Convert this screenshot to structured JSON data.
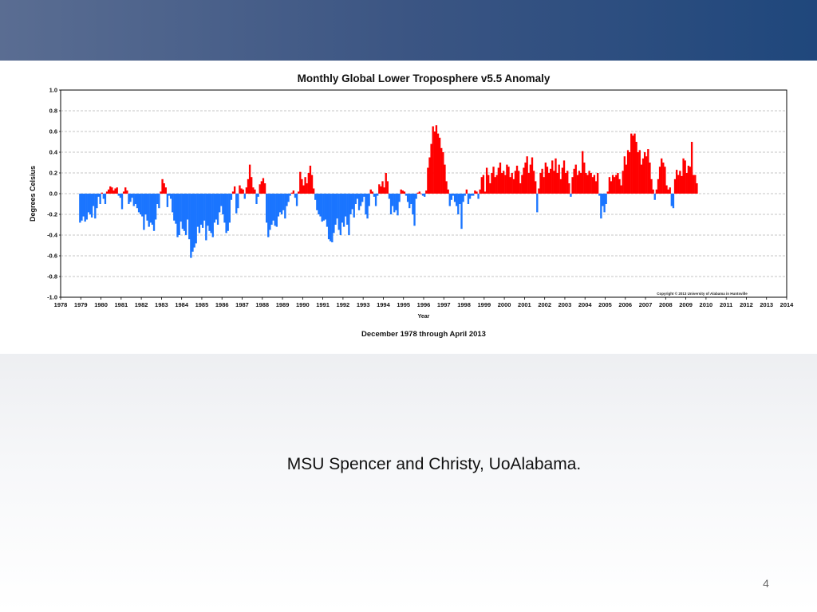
{
  "slide": {
    "caption": "MSU Spencer and Christy, UoAlabama.",
    "page_number": "4"
  },
  "colors": {
    "positive": "#ff0000",
    "negative": "#1a75ff",
    "band_left": "#5a6d92",
    "band_right": "#1f477c"
  },
  "chart_data": {
    "type": "bar",
    "title": "Monthly Global Lower Troposphere v5.5 Anomaly",
    "xlabel": "Year",
    "ylabel": "Degrees Celsius",
    "subtitle": "December 1978 through April 2013",
    "copyright": "Copyright © 2013 University of Alabama in Huntsville",
    "grid": true,
    "ylim": [
      -1.0,
      1.0
    ],
    "xlim": [
      1978,
      2014
    ],
    "yticks": [
      1.0,
      0.8,
      0.6,
      0.4,
      0.2,
      0.0,
      -0.2,
      -0.4,
      -0.6,
      -0.8,
      -1.0
    ],
    "yticklabels": [
      "1.0",
      "0.8",
      "0.6",
      "0.4",
      "0.2",
      "0.0",
      "-0.2",
      "-0.4",
      "-0.6",
      "-0.8",
      "-1.0"
    ],
    "xticks": [
      "1978",
      "1979",
      "1980",
      "1981",
      "1982",
      "1983",
      "1984",
      "1985",
      "1986",
      "1987",
      "1988",
      "1989",
      "1990",
      "1991",
      "1992",
      "1993",
      "1994",
      "1995",
      "1996",
      "1997",
      "1998",
      "1999",
      "2000",
      "2001",
      "2002",
      "2003",
      "2004",
      "2005",
      "2006",
      "2007",
      "2008",
      "2009",
      "2010",
      "2011",
      "2012",
      "2013",
      "2014"
    ],
    "start": "1978-12",
    "end": "2013-04",
    "values": [
      -0.28,
      -0.26,
      -0.22,
      -0.27,
      -0.25,
      -0.18,
      -0.2,
      -0.23,
      -0.12,
      -0.24,
      -0.14,
      -0.03,
      -0.1,
      0.01,
      -0.05,
      -0.1,
      0.02,
      0.04,
      0.07,
      0.06,
      0.03,
      0.05,
      0.06,
      -0.02,
      -0.04,
      -0.15,
      0.02,
      0.06,
      0.03,
      -0.1,
      -0.08,
      -0.04,
      -0.12,
      -0.1,
      -0.14,
      -0.18,
      -0.2,
      -0.22,
      -0.35,
      -0.2,
      -0.26,
      -0.32,
      -0.28,
      -0.3,
      -0.36,
      -0.25,
      -0.1,
      -0.14,
      0.02,
      0.14,
      0.1,
      0.06,
      -0.13,
      -0.02,
      -0.05,
      -0.18,
      -0.26,
      -0.29,
      -0.42,
      -0.4,
      -0.27,
      -0.34,
      -0.36,
      -0.4,
      -0.25,
      -0.44,
      -0.62,
      -0.56,
      -0.52,
      -0.48,
      -0.32,
      -0.38,
      -0.3,
      -0.33,
      -0.26,
      -0.45,
      -0.31,
      -0.36,
      -0.38,
      -0.42,
      -0.28,
      -0.25,
      -0.3,
      -0.18,
      -0.12,
      -0.2,
      -0.28,
      -0.38,
      -0.36,
      -0.28,
      -0.06,
      0.02,
      0.07,
      -0.19,
      -0.14,
      0.08,
      0.05,
      0.04,
      -0.05,
      0.06,
      0.14,
      0.28,
      0.16,
      0.06,
      0.04,
      -0.1,
      -0.03,
      0.09,
      0.12,
      0.15,
      0.1,
      -0.28,
      -0.42,
      -0.35,
      -0.3,
      -0.26,
      -0.31,
      -0.32,
      -0.22,
      -0.18,
      -0.2,
      -0.16,
      -0.24,
      -0.12,
      -0.08,
      -0.02,
      0.01,
      0.03,
      -0.04,
      -0.12,
      0.02,
      0.21,
      0.14,
      0.08,
      0.16,
      0.1,
      0.2,
      0.27,
      0.18,
      0.05,
      -0.06,
      -0.16,
      -0.2,
      -0.22,
      -0.27,
      -0.26,
      -0.25,
      -0.32,
      -0.44,
      -0.46,
      -0.47,
      -0.38,
      -0.3,
      -0.24,
      -0.35,
      -0.4,
      -0.28,
      -0.32,
      -0.22,
      -0.3,
      -0.4,
      -0.2,
      -0.15,
      -0.23,
      -0.1,
      -0.05,
      -0.16,
      -0.12,
      -0.08,
      -0.03,
      -0.2,
      -0.24,
      -0.12,
      0.04,
      0.02,
      -0.03,
      -0.12,
      -0.02,
      0.09,
      0.07,
      0.12,
      0.06,
      0.2,
      0.12,
      -0.05,
      -0.2,
      -0.12,
      -0.18,
      -0.16,
      -0.21,
      -0.08,
      0.04,
      0.03,
      0.02,
      -0.02,
      -0.08,
      -0.14,
      -0.1,
      -0.2,
      -0.31,
      -0.05,
      0.01,
      0.02,
      0.0,
      -0.02,
      -0.03,
      0.03,
      0.25,
      0.35,
      0.48,
      0.65,
      0.6,
      0.66,
      0.58,
      0.54,
      0.44,
      0.4,
      0.28,
      0.12,
      0.04,
      -0.12,
      -0.06,
      -0.02,
      -0.08,
      -0.12,
      -0.2,
      -0.1,
      -0.34,
      -0.08,
      -0.02,
      0.04,
      -0.1,
      -0.05,
      -0.02,
      -0.02,
      0.03,
      0.02,
      -0.05,
      0.04,
      0.16,
      0.18,
      0.02,
      0.25,
      0.18,
      0.1,
      0.2,
      0.26,
      0.16,
      0.18,
      0.25,
      0.3,
      0.2,
      0.22,
      0.18,
      0.28,
      0.26,
      0.16,
      0.2,
      0.14,
      0.22,
      0.27,
      0.22,
      0.1,
      0.18,
      0.25,
      0.3,
      0.36,
      0.2,
      0.28,
      0.35,
      0.22,
      0.12,
      -0.18,
      0.05,
      0.2,
      0.24,
      0.16,
      0.3,
      0.26,
      0.2,
      0.24,
      0.32,
      0.22,
      0.34,
      0.2,
      0.28,
      0.14,
      0.25,
      0.32,
      0.2,
      0.22,
      0.1,
      -0.03,
      0.16,
      0.24,
      0.28,
      0.18,
      0.22,
      0.2,
      0.41,
      0.3,
      0.2,
      0.18,
      0.22,
      0.2,
      0.16,
      0.18,
      0.12,
      0.2,
      -0.02,
      -0.24,
      -0.12,
      -0.18,
      -0.1,
      0.02,
      0.16,
      0.12,
      0.18,
      0.16,
      0.18,
      0.2,
      0.14,
      0.08,
      0.22,
      0.36,
      0.28,
      0.42,
      0.4,
      0.58,
      0.56,
      0.58,
      0.5,
      0.4,
      0.42,
      0.28,
      0.34,
      0.4,
      0.36,
      0.43,
      0.3,
      0.14,
      0.04,
      -0.06,
      0.04,
      0.14,
      0.26,
      0.34,
      0.3,
      0.26,
      0.08,
      0.04,
      0.06,
      -0.12,
      -0.14,
      0.14,
      0.23,
      0.18,
      0.22,
      0.17,
      0.34,
      0.32,
      0.2,
      0.27,
      0.26,
      0.5,
      0.18,
      0.18,
      0.1
    ]
  }
}
